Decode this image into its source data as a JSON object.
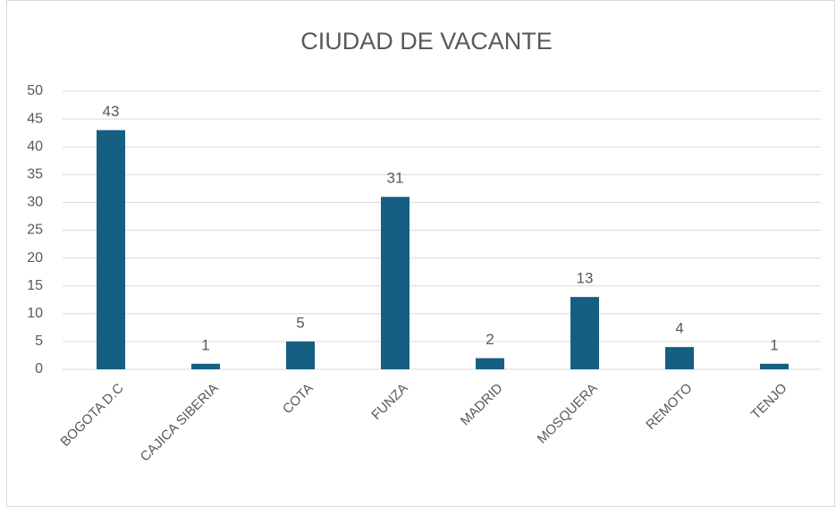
{
  "chart_data": {
    "type": "bar",
    "title": "CIUDAD DE VACANTE",
    "categories": [
      "BOGOTA D.C",
      "CAJICA SIBERIA",
      "COTA",
      "FUNZA",
      "MADRID",
      "MOSQUERA",
      "REMOTO",
      "TENJO"
    ],
    "values": [
      43,
      1,
      5,
      31,
      2,
      13,
      4,
      1
    ],
    "color": "#155f82",
    "ylim": [
      0,
      50
    ],
    "yticks": [
      0,
      5,
      10,
      15,
      20,
      25,
      30,
      35,
      40,
      45,
      50
    ],
    "grid": true
  }
}
